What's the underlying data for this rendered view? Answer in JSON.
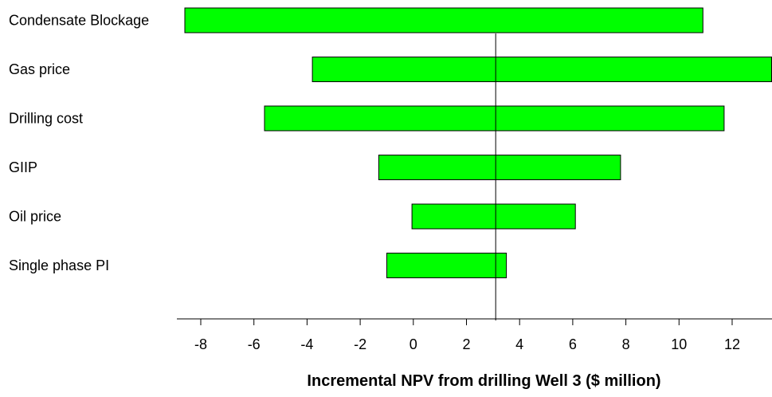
{
  "chart_data": {
    "type": "bar",
    "orientation": "horizontal",
    "variant": "tornado",
    "title": "",
    "xlabel": "Incremental NPV from drilling Well 3 ($ million)",
    "ylabel": "",
    "xlim": [
      -8.9,
      13.5
    ],
    "xticks": [
      -8,
      -6,
      -4,
      -2,
      0,
      2,
      4,
      6,
      8,
      10,
      12
    ],
    "xtick_labels": [
      "-8",
      "-6",
      "-4",
      "-2",
      "0",
      "2",
      "4",
      "6",
      "8",
      "10",
      "12"
    ],
    "base_value": 3.1,
    "bar_color": "#00ff00",
    "categories": [
      "Condensate Blockage",
      "Gas price",
      "Drilling cost",
      "GIIP",
      "Oil price",
      "Single phase PI"
    ],
    "series": [
      {
        "values": [
          [
            -8.6,
            10.9
          ],
          [
            -3.8,
            13.5
          ],
          [
            -5.6,
            11.7
          ],
          [
            -1.3,
            7.8
          ],
          [
            -0.05,
            6.1
          ],
          [
            -1.0,
            3.5
          ]
        ]
      }
    ],
    "grid": false,
    "legend": "none"
  }
}
